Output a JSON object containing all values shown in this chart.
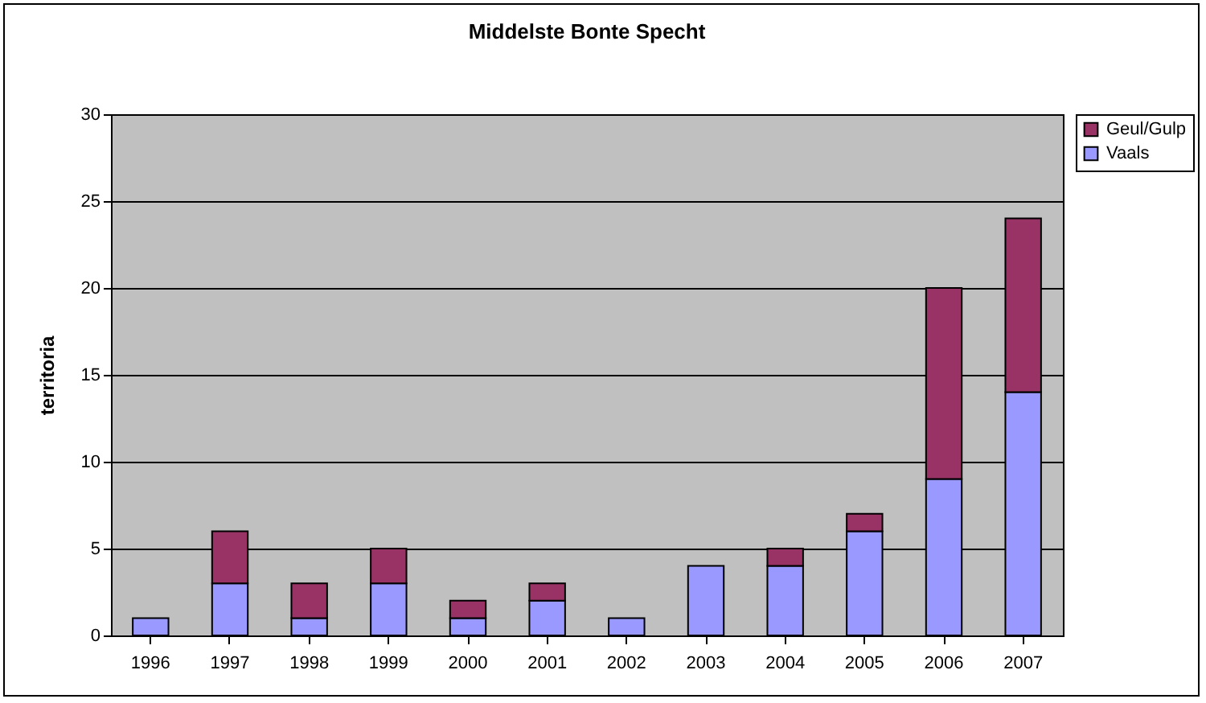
{
  "chart_data": {
    "type": "bar",
    "title": "Middelste Bonte Specht",
    "ylabel": "territoria",
    "categories": [
      "1996",
      "1997",
      "1998",
      "1999",
      "2000",
      "2001",
      "2002",
      "2003",
      "2004",
      "2005",
      "2006",
      "2007"
    ],
    "series": [
      {
        "name": "Vaals",
        "color": "#9999ff",
        "values": [
          1,
          3,
          1,
          3,
          1,
          2,
          1,
          4,
          4,
          6,
          9,
          14
        ]
      },
      {
        "name": "Geul/Gulp",
        "color": "#993366",
        "values": [
          null,
          3,
          2,
          2,
          1,
          1,
          null,
          null,
          1,
          1,
          11,
          10
        ]
      }
    ],
    "stacked": true,
    "ylim": [
      0,
      30
    ],
    "yticks": [
      0,
      5,
      10,
      15,
      20,
      25,
      30
    ],
    "grid": "y",
    "legend": "right"
  }
}
